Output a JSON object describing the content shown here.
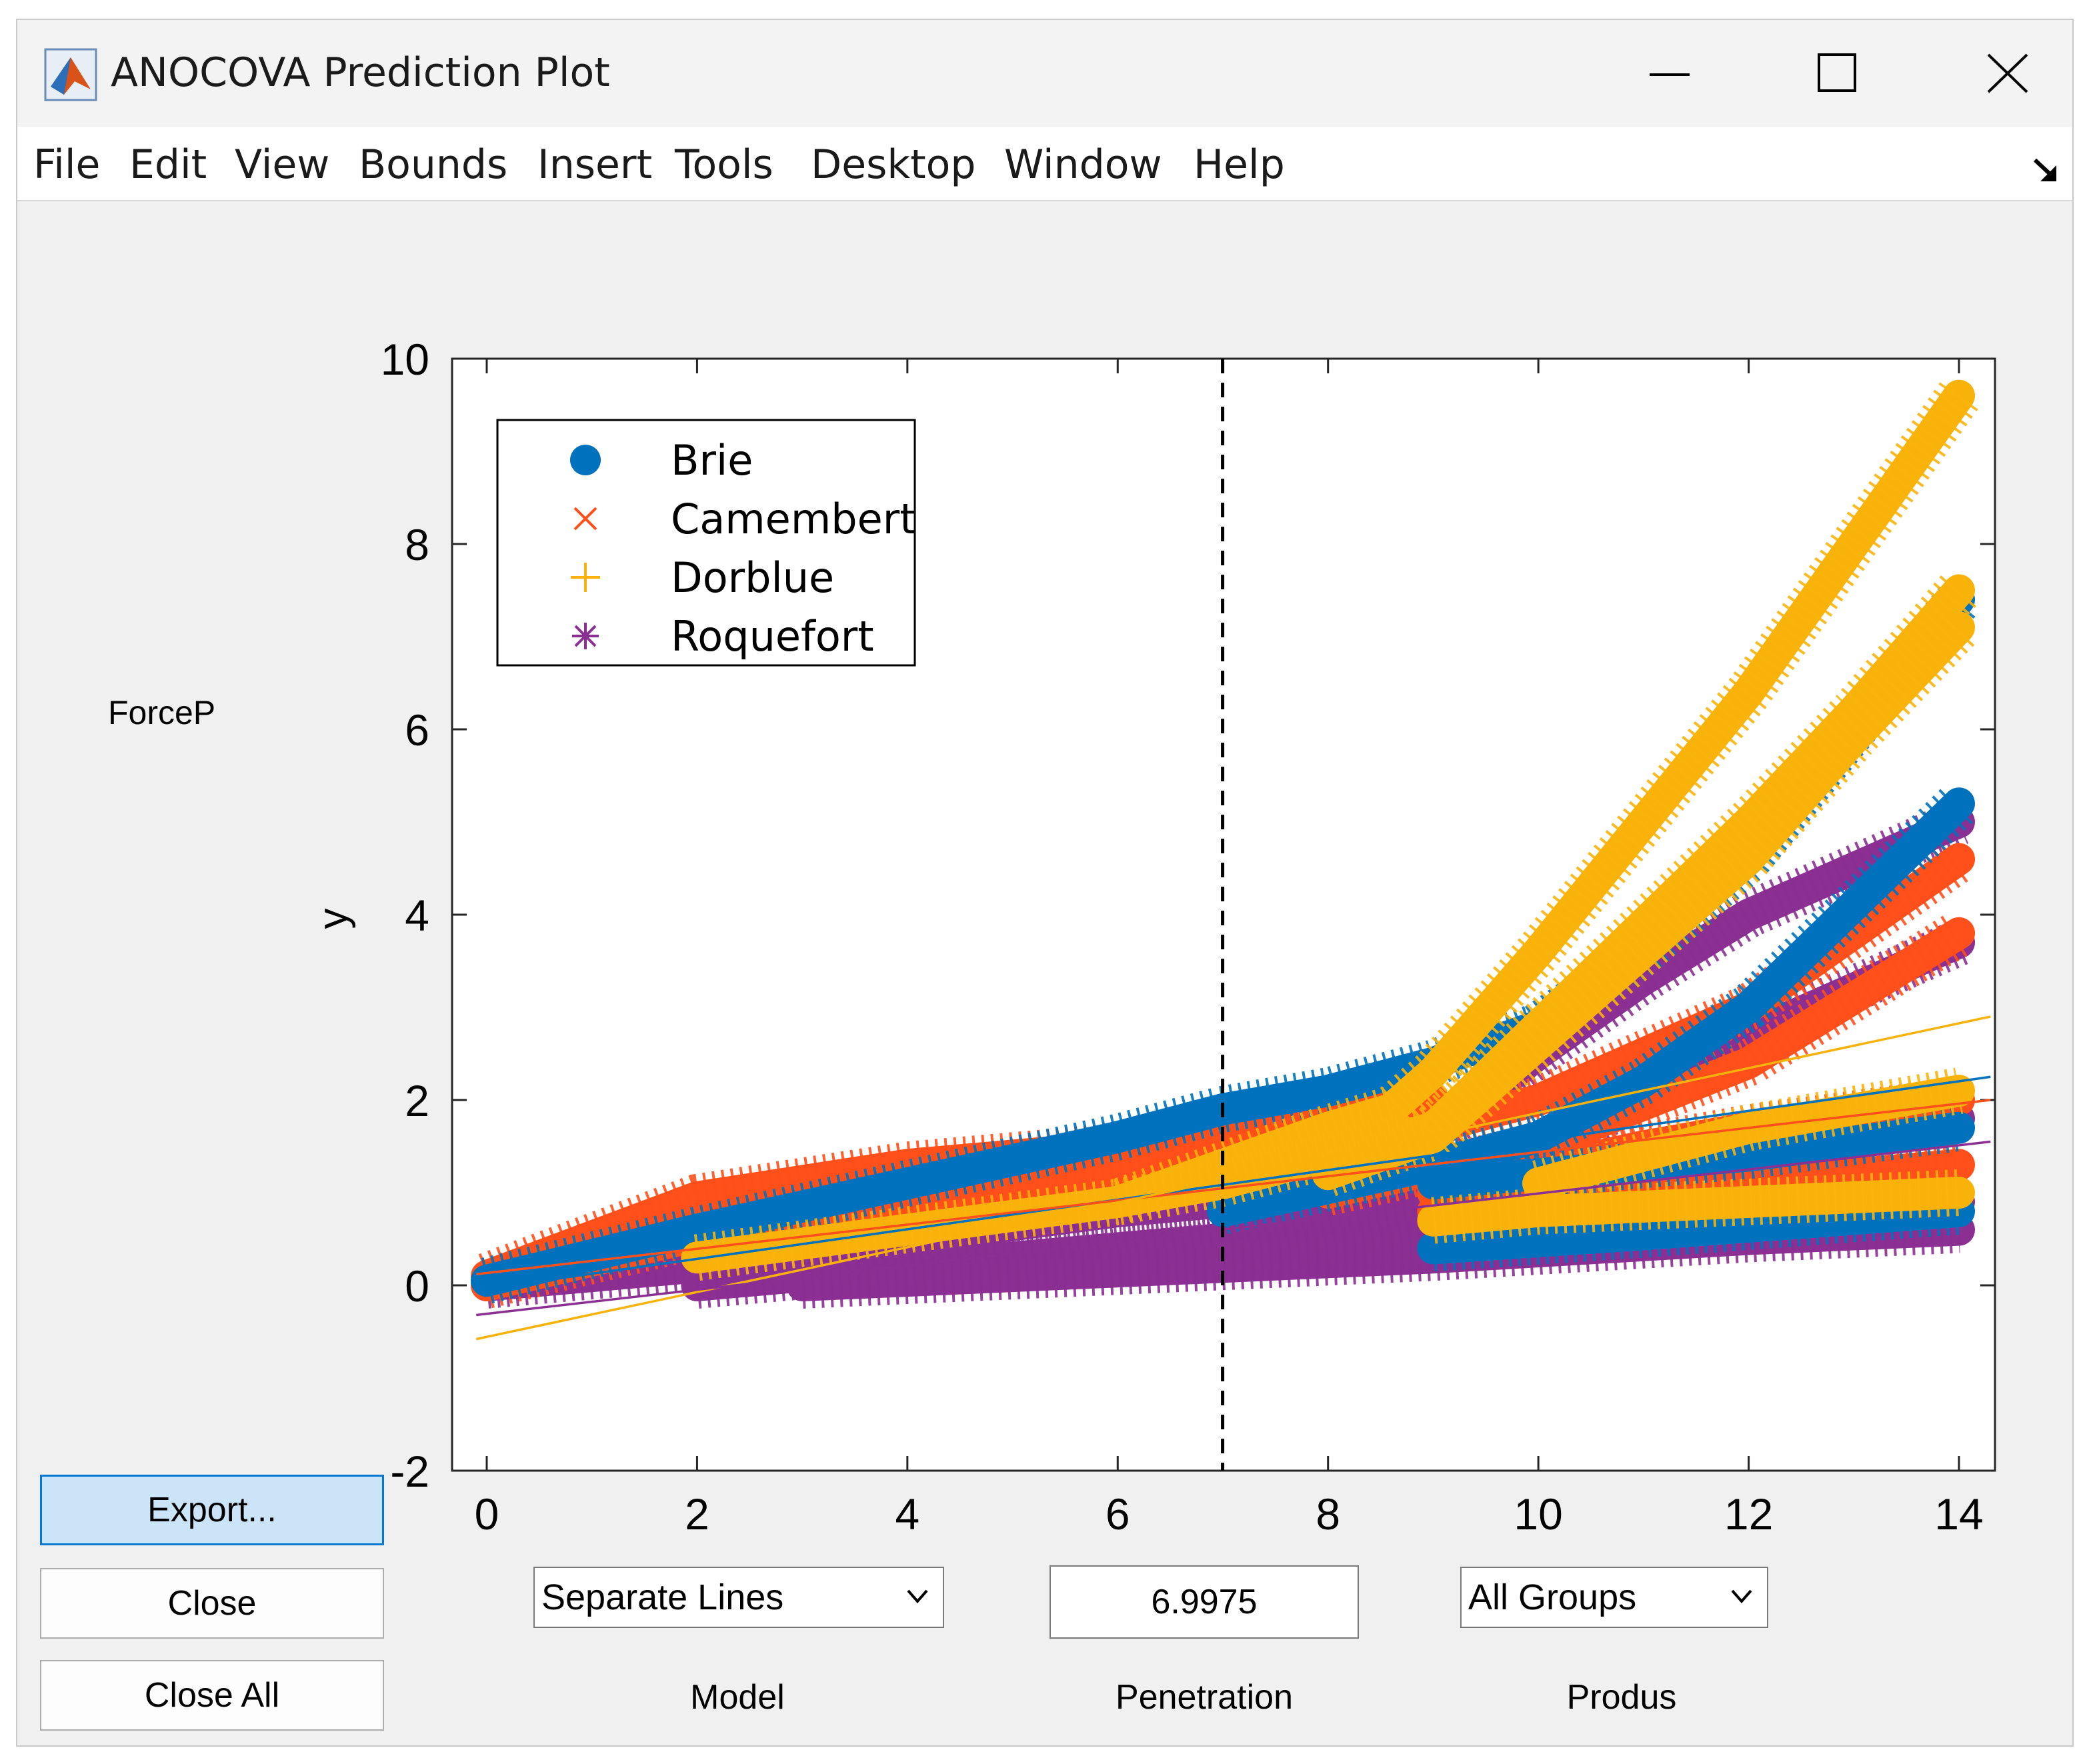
{
  "window": {
    "title": "ANOCOVA Prediction Plot",
    "controls": [
      "minimize",
      "maximize",
      "close"
    ]
  },
  "menu": [
    "File",
    "Edit",
    "View",
    "Bounds",
    "Insert",
    "Tools",
    "Desktop",
    "Window",
    "Help"
  ],
  "side_label": "ForceP",
  "buttons": {
    "export": "Export...",
    "close": "Close",
    "close_all": "Close All"
  },
  "controls": {
    "model_value": "Separate Lines",
    "model_caption": "Model",
    "penetration_value": "6.9975",
    "penetration_caption": "Penetration",
    "group_value": "All Groups",
    "group_caption": "Produs"
  },
  "colors": {
    "brie": "#0072bd",
    "camembert": "#ff4f1a",
    "dorblue": "#f8b20a",
    "roquefort": "#8b2f93",
    "crosshair": "#000000"
  },
  "chart_data": {
    "type": "scatter",
    "ylabel": "y",
    "xlim": [
      0,
      14
    ],
    "ylim": [
      -2,
      10
    ],
    "xticks": [
      "0",
      "2",
      "4",
      "6",
      "8",
      "10",
      "12",
      "14"
    ],
    "yticks": [
      "-2",
      "0",
      "2",
      "4",
      "6",
      "8",
      "10"
    ],
    "crosshair_x": 6.9975,
    "legend": [
      {
        "name": "Brie",
        "marker": "filled-circle"
      },
      {
        "name": "Camembert",
        "marker": "x"
      },
      {
        "name": "Dorblue",
        "marker": "plus"
      },
      {
        "name": "Roquefort",
        "marker": "asterisk"
      }
    ],
    "series": [
      {
        "name": "Brie",
        "curves": [
          [
            [
              0,
              0.05
            ],
            [
              2,
              0.6
            ],
            [
              4,
              1.1
            ],
            [
              6,
              1.6
            ],
            [
              7,
              1.9
            ],
            [
              8,
              2.1
            ],
            [
              9,
              2.4
            ],
            [
              10,
              2.8
            ],
            [
              11,
              3.6
            ],
            [
              12,
              4.6
            ],
            [
              13,
              6.0
            ],
            [
              14,
              7.4
            ]
          ],
          [
            [
              7,
              0.8
            ],
            [
              9,
              1.3
            ],
            [
              10,
              1.6
            ],
            [
              11,
              2.2
            ],
            [
              12,
              3.0
            ],
            [
              13,
              4.1
            ],
            [
              14,
              5.2
            ]
          ],
          [
            [
              9,
              1.1
            ],
            [
              11,
              1.3
            ],
            [
              12,
              1.4
            ],
            [
              14,
              1.7
            ]
          ],
          [
            [
              9,
              0.4
            ],
            [
              11,
              0.55
            ],
            [
              14,
              0.8
            ]
          ]
        ],
        "fit": [
          [
            -0.1,
            -0.05
          ],
          [
            14.3,
            2.25
          ]
        ]
      },
      {
        "name": "Camembert",
        "curves": [
          [
            [
              0,
              0.1
            ],
            [
              2,
              0.95
            ],
            [
              4,
              1.3
            ],
            [
              6,
              1.5
            ],
            [
              7,
              1.65
            ],
            [
              8,
              1.8
            ],
            [
              9,
              2.0
            ]
          ],
          [
            [
              0,
              0.0
            ],
            [
              3,
              0.8
            ],
            [
              6,
              1.2
            ],
            [
              8,
              1.4
            ],
            [
              10,
              2.0
            ],
            [
              12,
              3.0
            ],
            [
              14,
              4.6
            ]
          ],
          [
            [
              8,
              1.0
            ],
            [
              10,
              1.5
            ],
            [
              12,
              2.4
            ],
            [
              14,
              3.8
            ]
          ],
          [
            [
              9,
              1.0
            ],
            [
              11,
              1.5
            ],
            [
              12,
              1.7
            ],
            [
              14,
              2.0
            ]
          ],
          [
            [
              9,
              0.8
            ],
            [
              11,
              1.0
            ],
            [
              14,
              1.3
            ]
          ]
        ],
        "fit": [
          [
            -0.1,
            0.12
          ],
          [
            14.3,
            2.0
          ]
        ]
      },
      {
        "name": "Dorblue",
        "curves": [
          [
            [
              2,
              0.3
            ],
            [
              4,
              0.6
            ],
            [
              6,
              0.9
            ],
            [
              7,
              1.3
            ],
            [
              8,
              1.7
            ],
            [
              8.6,
              1.9
            ],
            [
              9,
              2.3
            ],
            [
              10,
              3.6
            ],
            [
              11,
              5.0
            ],
            [
              12,
              6.4
            ],
            [
              13,
              8.0
            ],
            [
              14,
              9.6
            ]
          ],
          [
            [
              6,
              0.9
            ],
            [
              7,
              1.1
            ],
            [
              8,
              1.4
            ],
            [
              9,
              1.7
            ],
            [
              10,
              2.8
            ],
            [
              11,
              3.9
            ],
            [
              12,
              5.0
            ],
            [
              13,
              6.2
            ],
            [
              14,
              7.5
            ]
          ],
          [
            [
              8,
              1.2
            ],
            [
              9,
              1.6
            ],
            [
              10,
              2.6
            ],
            [
              11,
              3.6
            ],
            [
              12,
              4.6
            ],
            [
              13,
              5.9
            ],
            [
              14,
              7.1
            ]
          ],
          [
            [
              10,
              1.1
            ],
            [
              11,
              1.4
            ],
            [
              12,
              1.7
            ],
            [
              14,
              2.1
            ]
          ],
          [
            [
              9,
              0.7
            ],
            [
              10,
              0.8
            ],
            [
              12,
              0.9
            ],
            [
              14,
              1.0
            ]
          ]
        ],
        "fit": [
          [
            -0.1,
            -0.58
          ],
          [
            14.3,
            2.9
          ]
        ]
      },
      {
        "name": "Roquefort",
        "curves": [
          [
            [
              0,
              0.0
            ],
            [
              2,
              0.2
            ],
            [
              4,
              0.5
            ],
            [
              6,
              0.8
            ],
            [
              7,
              0.9
            ],
            [
              8,
              1.1
            ],
            [
              9,
              1.6
            ],
            [
              10,
              2.5
            ],
            [
              11,
              3.3
            ],
            [
              12,
              4.0
            ],
            [
              13,
              4.5
            ],
            [
              14,
              5.0
            ]
          ],
          [
            [
              2,
              0.0
            ],
            [
              5,
              0.3
            ],
            [
              7,
              0.5
            ],
            [
              9,
              0.9
            ],
            [
              10,
              1.4
            ],
            [
              11,
              2.1
            ],
            [
              12,
              2.7
            ],
            [
              13,
              3.2
            ],
            [
              14,
              3.7
            ]
          ],
          [
            [
              6,
              0.3
            ],
            [
              8,
              0.6
            ],
            [
              10,
              1.0
            ],
            [
              11,
              1.3
            ],
            [
              12,
              1.6
            ],
            [
              14,
              1.8
            ]
          ],
          [
            [
              3,
              0.0
            ],
            [
              6,
              0.15
            ],
            [
              9,
              0.3
            ],
            [
              12,
              0.5
            ],
            [
              14,
              0.6
            ]
          ],
          [
            [
              7,
              0.3
            ],
            [
              10,
              0.5
            ],
            [
              12,
              0.7
            ],
            [
              14,
              0.9
            ]
          ]
        ],
        "fit": [
          [
            -0.1,
            -0.32
          ],
          [
            14.3,
            1.55
          ]
        ]
      }
    ]
  }
}
